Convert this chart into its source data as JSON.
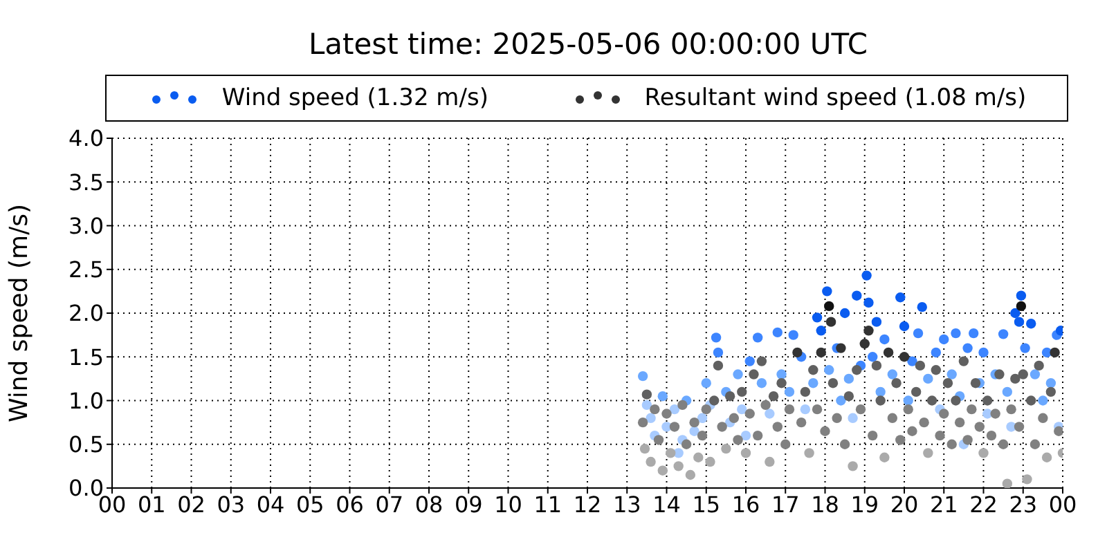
{
  "chart_data": {
    "type": "scatter",
    "title": "Latest time: 2025-05-06 00:00:00 UTC",
    "ylabel": "Wind speed (m/s)",
    "xlim": [
      0,
      24
    ],
    "xticks": [
      {
        "value": 0,
        "label": "00"
      },
      {
        "value": 1,
        "label": "01"
      },
      {
        "value": 2,
        "label": "02"
      },
      {
        "value": 3,
        "label": "03"
      },
      {
        "value": 4,
        "label": "04"
      },
      {
        "value": 5,
        "label": "05"
      },
      {
        "value": 6,
        "label": "06"
      },
      {
        "value": 7,
        "label": "07"
      },
      {
        "value": 8,
        "label": "08"
      },
      {
        "value": 9,
        "label": "09"
      },
      {
        "value": 10,
        "label": "10"
      },
      {
        "value": 11,
        "label": "11"
      },
      {
        "value": 12,
        "label": "12"
      },
      {
        "value": 13,
        "label": "13"
      },
      {
        "value": 14,
        "label": "14"
      },
      {
        "value": 15,
        "label": "15"
      },
      {
        "value": 16,
        "label": "16"
      },
      {
        "value": 17,
        "label": "17"
      },
      {
        "value": 18,
        "label": "18"
      },
      {
        "value": 19,
        "label": "19"
      },
      {
        "value": 20,
        "label": "20"
      },
      {
        "value": 21,
        "label": "21"
      },
      {
        "value": 22,
        "label": "22"
      },
      {
        "value": 23,
        "label": "23"
      },
      {
        "value": 24,
        "label": "00"
      }
    ],
    "ylim": [
      0,
      4
    ],
    "yticks": [
      {
        "value": 0,
        "label": "0.0"
      },
      {
        "value": 0.5,
        "label": "0.5"
      },
      {
        "value": 1,
        "label": "1.0"
      },
      {
        "value": 1.5,
        "label": "1.5"
      },
      {
        "value": 2,
        "label": "2.0"
      },
      {
        "value": 2.5,
        "label": "2.5"
      },
      {
        "value": 3,
        "label": "3.0"
      },
      {
        "value": 3.5,
        "label": "3.5"
      },
      {
        "value": 4,
        "label": "4.0"
      }
    ],
    "grid": true,
    "legend": "top",
    "marker": "circle",
    "series": [
      {
        "name": "Wind speed (1.32 m/s)",
        "color": "#0a5cf0",
        "x": [
          13.4,
          13.5,
          13.6,
          13.7,
          13.9,
          14.0,
          14.2,
          14.4,
          14.5,
          14.7,
          14.9,
          15.0,
          15.1,
          15.25,
          15.3,
          15.5,
          15.6,
          15.8,
          15.9,
          16.1,
          16.3,
          16.4,
          16.6,
          16.8,
          16.9,
          17.1,
          17.2,
          17.4,
          17.5,
          17.7,
          17.8,
          17.9,
          18.05,
          18.1,
          18.3,
          18.4,
          18.5,
          18.6,
          18.8,
          18.9,
          19.05,
          19.1,
          19.2,
          19.3,
          19.4,
          19.5,
          19.7,
          19.9,
          20.0,
          20.1,
          20.2,
          20.35,
          20.45,
          20.6,
          20.8,
          20.9,
          21.0,
          21.2,
          21.3,
          21.4,
          21.6,
          21.75,
          21.9,
          22.0,
          22.1,
          22.3,
          22.5,
          22.6,
          22.8,
          22.9,
          22.95,
          23.05,
          23.2,
          23.3,
          23.5,
          23.6,
          23.7,
          23.85,
          23.95,
          23.9,
          14.3,
          16.0,
          18.7,
          21.5,
          22.7
        ],
        "values": [
          1.28,
          0.95,
          0.8,
          0.6,
          1.05,
          0.7,
          0.9,
          0.55,
          1.0,
          0.65,
          0.8,
          1.2,
          0.95,
          1.72,
          1.55,
          1.1,
          0.75,
          1.3,
          0.9,
          1.45,
          1.72,
          1.2,
          0.85,
          1.78,
          1.3,
          1.1,
          1.75,
          1.5,
          0.9,
          1.2,
          1.95,
          1.8,
          2.25,
          1.35,
          1.6,
          1.0,
          2.0,
          1.25,
          2.2,
          1.4,
          2.43,
          2.12,
          1.5,
          1.9,
          1.1,
          1.7,
          1.3,
          2.18,
          1.85,
          1.0,
          1.45,
          1.77,
          2.07,
          1.25,
          1.55,
          0.9,
          1.7,
          1.3,
          1.77,
          1.05,
          1.6,
          1.77,
          1.2,
          1.55,
          0.85,
          1.3,
          1.76,
          1.1,
          2.0,
          1.9,
          2.2,
          1.6,
          1.88,
          1.3,
          1.0,
          1.55,
          1.2,
          1.75,
          1.8,
          0.7,
          0.4,
          0.6,
          0.8,
          0.5,
          0.7
        ],
        "colors": [
          "#6aa8ff",
          "#a8cbff",
          "#a8cbff",
          "#a8cbff",
          "#6aa8ff",
          "#a8cbff",
          "#a8cbff",
          "#a8cbff",
          "#6aa8ff",
          "#a8cbff",
          "#a8cbff",
          "#6aa8ff",
          "#a8cbff",
          "#3d85ff",
          "#3d85ff",
          "#6aa8ff",
          "#a8cbff",
          "#6aa8ff",
          "#a8cbff",
          "#3d85ff",
          "#3d85ff",
          "#6aa8ff",
          "#a8cbff",
          "#3d85ff",
          "#6aa8ff",
          "#6aa8ff",
          "#3d85ff",
          "#3d85ff",
          "#a8cbff",
          "#6aa8ff",
          "#0a5cf0",
          "#0a5cf0",
          "#0a5cf0",
          "#6aa8ff",
          "#3d85ff",
          "#6aa8ff",
          "#0a5cf0",
          "#6aa8ff",
          "#0a5cf0",
          "#3d85ff",
          "#0a5cf0",
          "#0a5cf0",
          "#3d85ff",
          "#0a5cf0",
          "#6aa8ff",
          "#3d85ff",
          "#6aa8ff",
          "#0a5cf0",
          "#0a5cf0",
          "#6aa8ff",
          "#3d85ff",
          "#3d85ff",
          "#0a5cf0",
          "#6aa8ff",
          "#3d85ff",
          "#a8cbff",
          "#3d85ff",
          "#6aa8ff",
          "#3d85ff",
          "#6aa8ff",
          "#3d85ff",
          "#3d85ff",
          "#6aa8ff",
          "#3d85ff",
          "#a8cbff",
          "#6aa8ff",
          "#3d85ff",
          "#6aa8ff",
          "#0a5cf0",
          "#0a5cf0",
          "#0a5cf0",
          "#3d85ff",
          "#0a5cf0",
          "#6aa8ff",
          "#6aa8ff",
          "#3d85ff",
          "#6aa8ff",
          "#3d85ff",
          "#0a5cf0",
          "#a8cbff",
          "#a8cbff",
          "#a8cbff",
          "#a8cbff",
          "#a8cbff",
          "#a8cbff"
        ]
      },
      {
        "name": "Resultant wind speed (1.08 m/s)",
        "color": "#333333",
        "x": [
          13.4,
          13.45,
          13.5,
          13.6,
          13.7,
          13.8,
          13.9,
          14.0,
          14.1,
          14.2,
          14.3,
          14.4,
          14.5,
          14.6,
          14.7,
          14.8,
          14.9,
          15.0,
          15.1,
          15.2,
          15.3,
          15.4,
          15.5,
          15.6,
          15.7,
          15.8,
          15.9,
          16.0,
          16.1,
          16.2,
          16.3,
          16.4,
          16.5,
          16.6,
          16.7,
          16.8,
          16.9,
          17.0,
          17.1,
          17.3,
          17.4,
          17.5,
          17.6,
          17.7,
          17.8,
          17.9,
          18.0,
          18.1,
          18.15,
          18.2,
          18.3,
          18.4,
          18.5,
          18.6,
          18.7,
          18.8,
          18.9,
          19.0,
          19.1,
          19.2,
          19.3,
          19.4,
          19.5,
          19.6,
          19.7,
          19.8,
          19.9,
          20.0,
          20.1,
          20.2,
          20.3,
          20.4,
          20.5,
          20.6,
          20.7,
          20.8,
          20.9,
          21.0,
          21.1,
          21.2,
          21.3,
          21.4,
          21.5,
          21.6,
          21.7,
          21.8,
          21.9,
          22.0,
          22.1,
          22.2,
          22.3,
          22.4,
          22.5,
          22.6,
          22.7,
          22.8,
          22.9,
          22.95,
          23.0,
          23.1,
          23.2,
          23.3,
          23.4,
          23.5,
          23.6,
          23.7,
          23.8,
          23.9,
          24.0
        ],
        "values": [
          0.75,
          0.45,
          1.07,
          0.3,
          0.9,
          0.55,
          0.2,
          0.85,
          0.4,
          0.7,
          0.25,
          0.95,
          0.5,
          0.15,
          0.75,
          0.35,
          0.6,
          0.9,
          0.3,
          1.0,
          1.4,
          0.7,
          0.45,
          1.05,
          0.8,
          0.55,
          1.1,
          0.4,
          0.85,
          1.3,
          0.6,
          1.45,
          0.95,
          0.3,
          1.05,
          0.7,
          1.2,
          0.5,
          0.9,
          1.55,
          0.75,
          1.1,
          0.4,
          1.35,
          0.9,
          1.55,
          0.65,
          2.08,
          1.9,
          1.2,
          0.8,
          1.6,
          0.5,
          1.05,
          0.25,
          1.35,
          0.9,
          1.65,
          1.8,
          0.6,
          1.4,
          1.0,
          0.35,
          1.55,
          0.8,
          1.2,
          0.55,
          1.5,
          0.9,
          0.65,
          1.1,
          1.4,
          0.75,
          0.4,
          1.0,
          1.35,
          0.6,
          0.85,
          1.2,
          0.5,
          1.0,
          0.75,
          1.45,
          0.55,
          0.9,
          1.2,
          0.7,
          0.4,
          1.0,
          0.6,
          0.85,
          1.3,
          0.5,
          0.05,
          0.9,
          1.25,
          0.7,
          2.08,
          1.3,
          0.1,
          1.0,
          0.5,
          1.4,
          0.8,
          0.35,
          1.1,
          1.55,
          0.65,
          0.4
        ],
        "colors": [
          "#808080",
          "#aaaaaa",
          "#606060",
          "#aaaaaa",
          "#808080",
          "#808080",
          "#aaaaaa",
          "#808080",
          "#aaaaaa",
          "#808080",
          "#aaaaaa",
          "#808080",
          "#808080",
          "#aaaaaa",
          "#808080",
          "#aaaaaa",
          "#808080",
          "#808080",
          "#aaaaaa",
          "#606060",
          "#606060",
          "#808080",
          "#aaaaaa",
          "#606060",
          "#808080",
          "#808080",
          "#606060",
          "#aaaaaa",
          "#808080",
          "#606060",
          "#808080",
          "#606060",
          "#808080",
          "#aaaaaa",
          "#606060",
          "#808080",
          "#606060",
          "#808080",
          "#808080",
          "#333333",
          "#808080",
          "#606060",
          "#aaaaaa",
          "#606060",
          "#808080",
          "#333333",
          "#808080",
          "#111111",
          "#333333",
          "#606060",
          "#808080",
          "#333333",
          "#808080",
          "#606060",
          "#aaaaaa",
          "#606060",
          "#808080",
          "#333333",
          "#333333",
          "#808080",
          "#606060",
          "#606060",
          "#aaaaaa",
          "#333333",
          "#808080",
          "#606060",
          "#808080",
          "#333333",
          "#808080",
          "#808080",
          "#606060",
          "#606060",
          "#808080",
          "#aaaaaa",
          "#606060",
          "#606060",
          "#808080",
          "#808080",
          "#606060",
          "#808080",
          "#606060",
          "#808080",
          "#606060",
          "#808080",
          "#808080",
          "#606060",
          "#808080",
          "#aaaaaa",
          "#606060",
          "#808080",
          "#808080",
          "#606060",
          "#808080",
          "#aaaaaa",
          "#808080",
          "#606060",
          "#808080",
          "#111111",
          "#606060",
          "#aaaaaa",
          "#606060",
          "#808080",
          "#606060",
          "#808080",
          "#aaaaaa",
          "#606060",
          "#333333",
          "#808080",
          "#aaaaaa"
        ]
      }
    ]
  }
}
